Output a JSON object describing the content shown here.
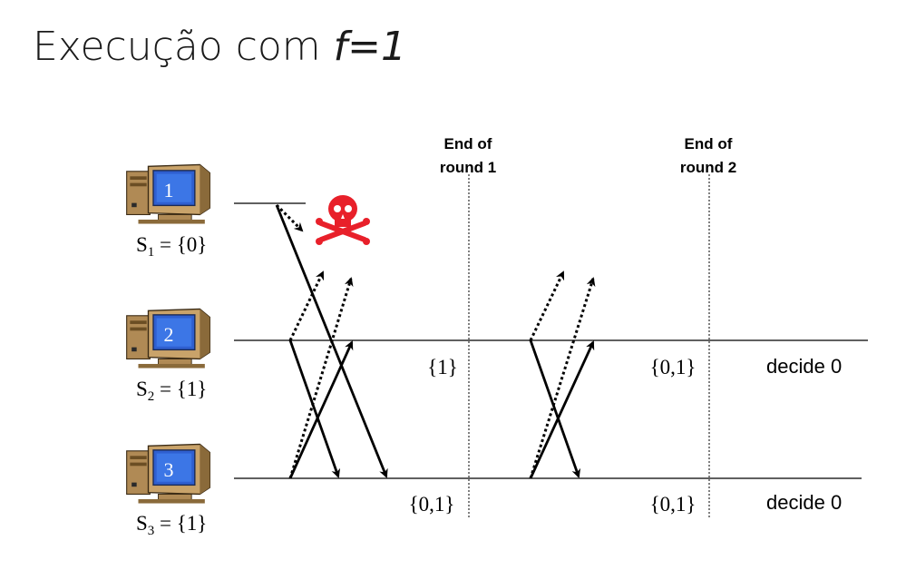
{
  "title": {
    "text": "Execução com ",
    "italic": "f=1"
  },
  "markers": [
    {
      "line1": "End of",
      "line2": "round 1"
    },
    {
      "line1": "End of",
      "line2": "round 2"
    }
  ],
  "processes": [
    {
      "number": "1",
      "label_base": "S",
      "label_sub": "1",
      "label_value": " = {0}"
    },
    {
      "number": "2",
      "label_base": "S",
      "label_sub": "2",
      "label_value": " = {1}"
    },
    {
      "number": "3",
      "label_base": "S",
      "label_sub": "3",
      "label_value": " = {1}"
    }
  ],
  "sets": {
    "p2_round1": "{1}",
    "p2_round2": "{0,1}",
    "p3_round1": "{0,1}",
    "p3_round2": "{0,1}"
  },
  "decisions": {
    "p2": "decide 0",
    "p3": "decide 0"
  },
  "icons": [
    "computer-icon",
    "skull-crossbones-icon"
  ],
  "colors": {
    "skull": "#e8202a",
    "monitor_screen": "#2f5fd0",
    "monitor_body": "#c9a36a"
  }
}
